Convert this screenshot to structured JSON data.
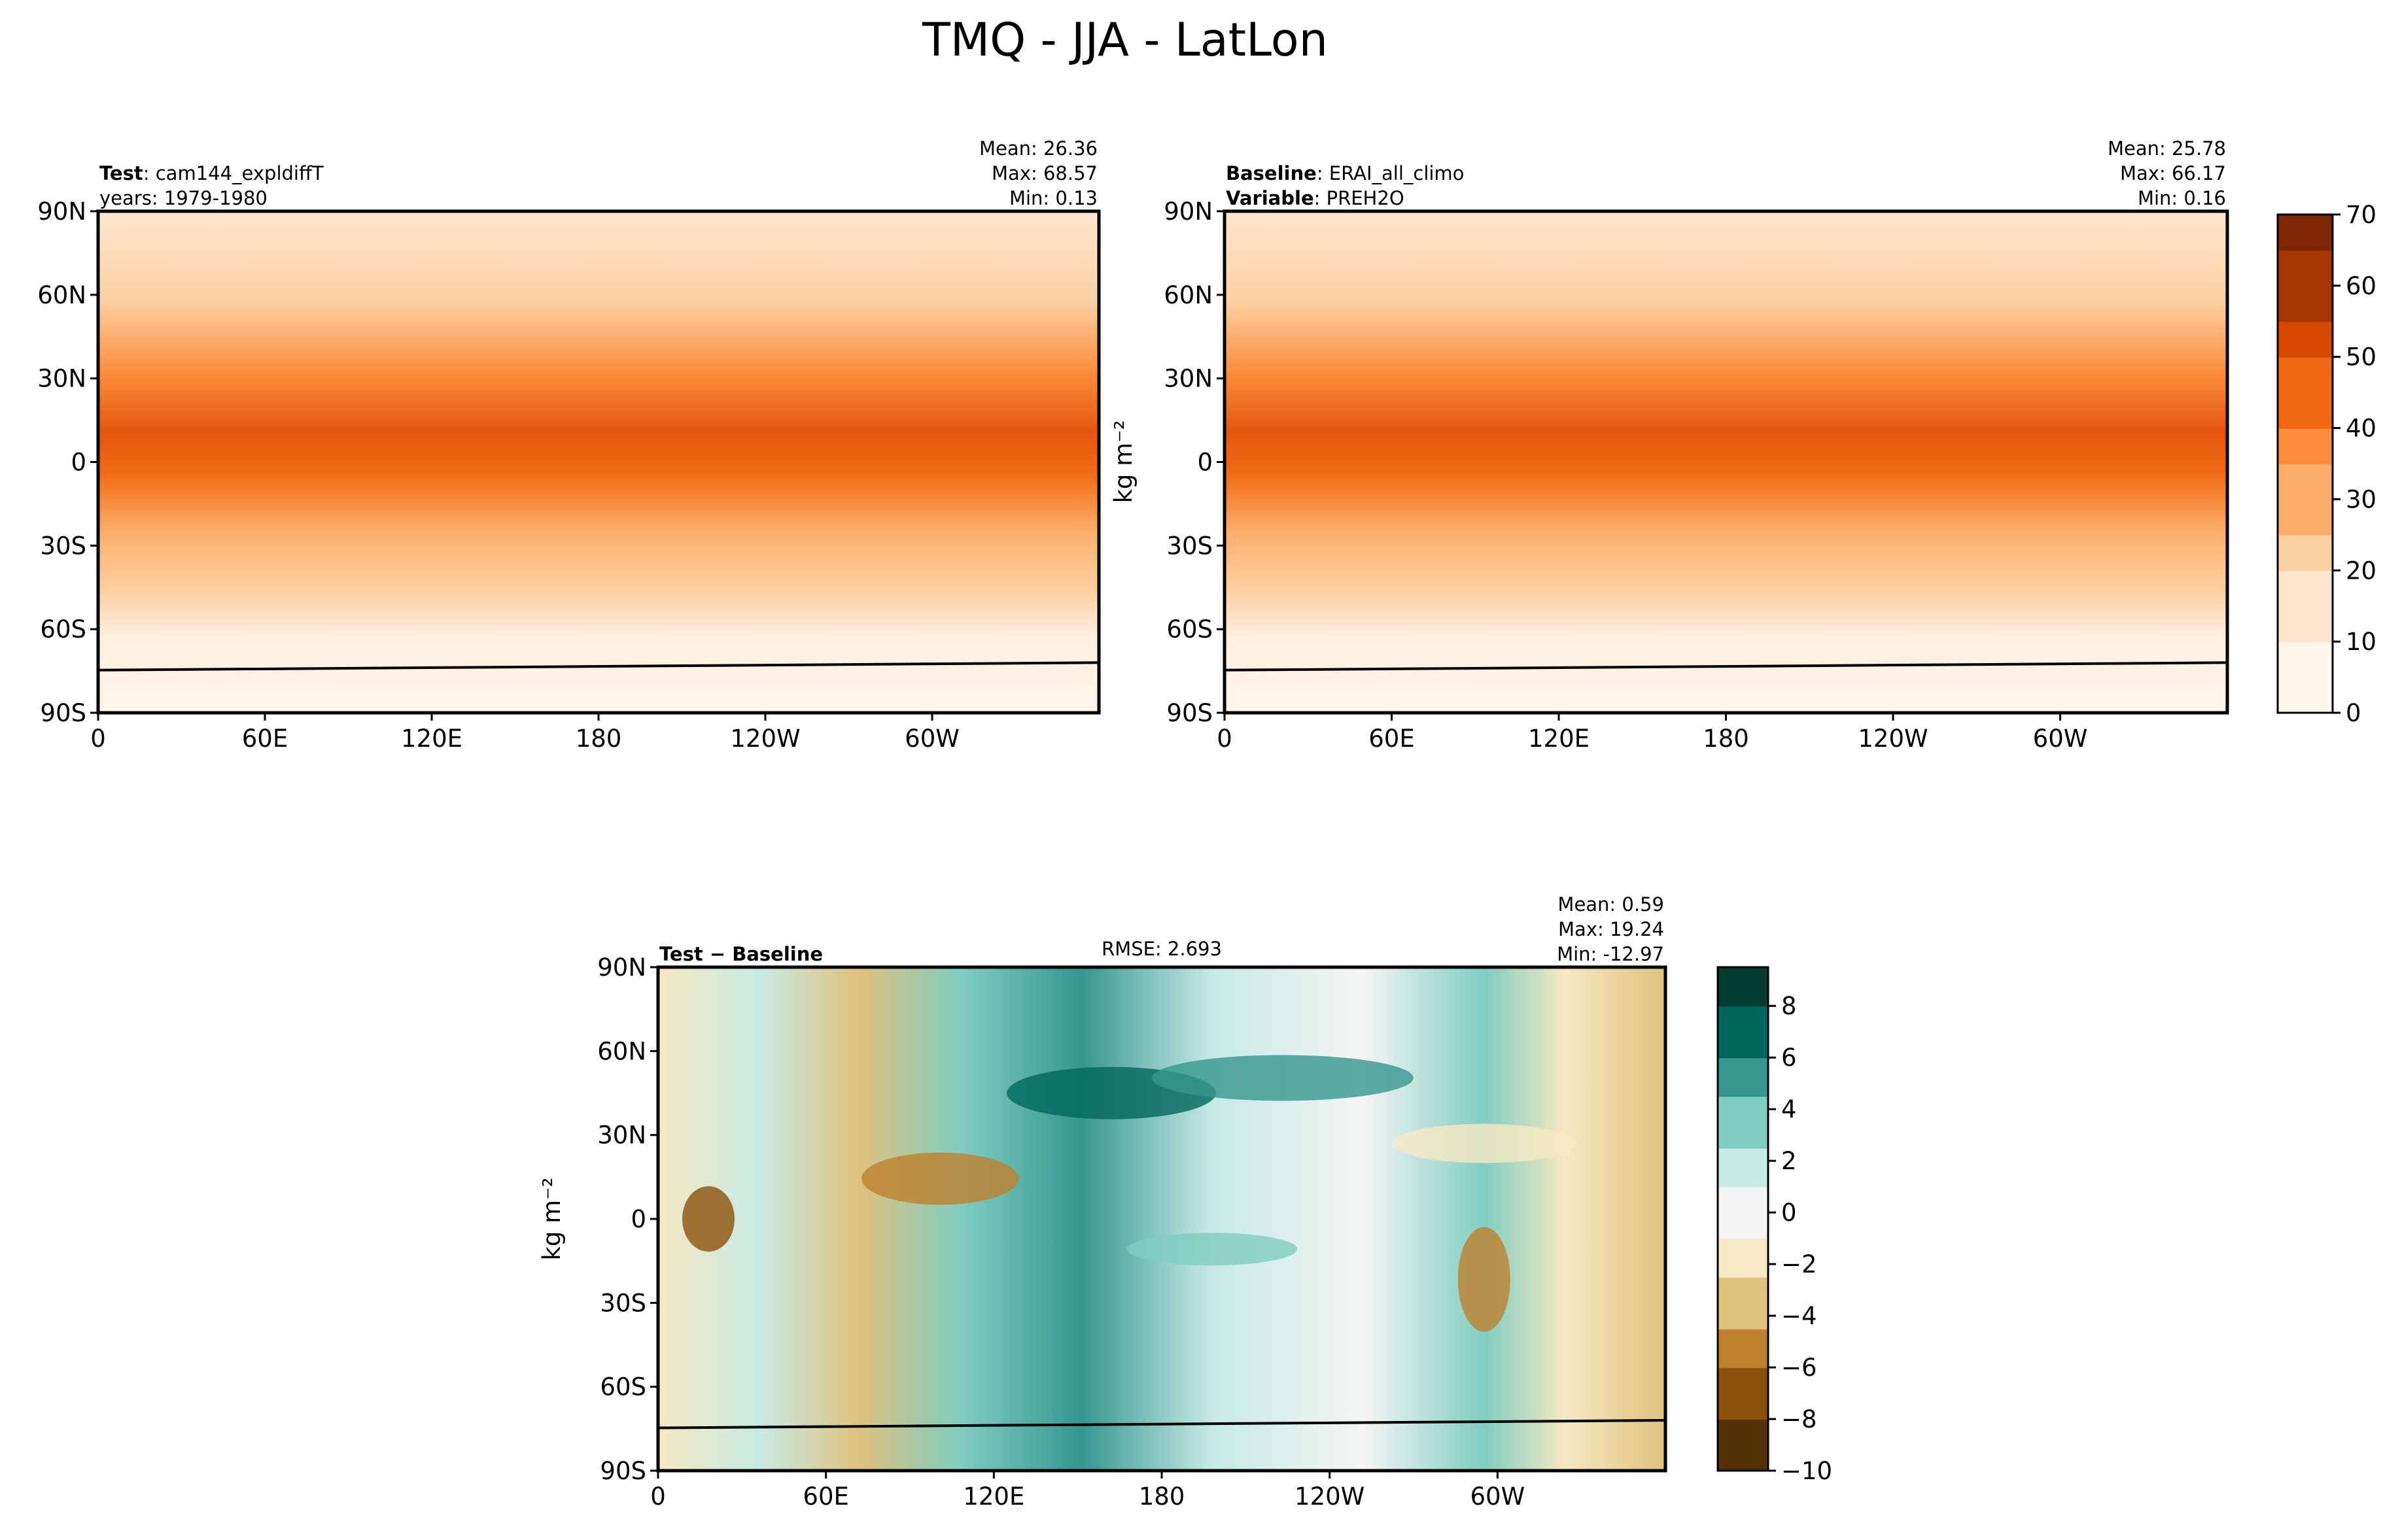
{
  "figure_title": "TMQ - JJA - LatLon",
  "chart_data": [
    {
      "type": "heatmap",
      "panel": "test",
      "header_left": [
        {
          "bold": "Test",
          "text": ": cam144_expldiffT"
        },
        {
          "bold": "",
          "text": "years: 1979-1980"
        }
      ],
      "stats": [
        "Mean: 26.36",
        "Max: 68.57",
        "Min:  0.13"
      ],
      "x_ticks": [
        "0",
        "60E",
        "120E",
        "180",
        "120W",
        "60W"
      ],
      "y_ticks": [
        "90N",
        "60N",
        "30N",
        "0",
        "30S",
        "60S",
        "90S"
      ],
      "colormap": "Oranges",
      "value_range": [
        0,
        70
      ],
      "map_type": "filled contour lat-lon with coastlines"
    },
    {
      "type": "heatmap",
      "panel": "baseline",
      "header_left": [
        {
          "bold": "Baseline",
          "text": ": ERAI_all_climo"
        },
        {
          "bold": "Variable",
          "text": ": PREH2O"
        }
      ],
      "stats": [
        "Mean: 25.78",
        "Max: 66.17",
        "Min:  0.16"
      ],
      "x_ticks": [
        "0",
        "60E",
        "120E",
        "180",
        "120W",
        "60W"
      ],
      "y_ticks": [
        "90N",
        "60N",
        "30N",
        "0",
        "30S",
        "60S",
        "90S"
      ],
      "colormap": "Oranges",
      "value_range": [
        0,
        70
      ],
      "colorbar": {
        "label": "kg m⁻²",
        "ticks": [
          "0",
          "10",
          "20",
          "30",
          "40",
          "50",
          "60",
          "70"
        ],
        "levels_step": 5,
        "range": [
          0,
          70
        ]
      }
    },
    {
      "type": "heatmap",
      "panel": "difference",
      "header_left": [
        {
          "bold": "Test − Baseline",
          "text": ""
        }
      ],
      "header_center": "RMSE: 2.693",
      "stats": [
        "Mean:  0.59",
        "Max: 19.24",
        "Min: -12.97"
      ],
      "x_ticks": [
        "0",
        "60E",
        "120E",
        "180",
        "120W",
        "60W"
      ],
      "y_ticks": [
        "90N",
        "60N",
        "30N",
        "0",
        "30S",
        "60S",
        "90S"
      ],
      "ylabel": "kg m⁻²",
      "colormap": "BrBG",
      "colorbar": {
        "ticks": [
          "−10",
          "−8",
          "−6",
          "−4",
          "−2",
          "0",
          "2",
          "4",
          "6",
          "8"
        ],
        "range": [
          -10,
          9.5
        ]
      }
    }
  ],
  "colors": {
    "oranges": [
      "#fff5eb",
      "#fee6ce",
      "#fdd0a2",
      "#fdae6b",
      "#fd8d3c",
      "#f16913",
      "#d94801",
      "#a63603",
      "#7f2704"
    ],
    "brbg": [
      "#543005",
      "#8c510a",
      "#bf812d",
      "#dfc27d",
      "#f6e8c3",
      "#f5f5f5",
      "#c7eae5",
      "#80cdc1",
      "#35978f",
      "#01665e",
      "#003c30"
    ]
  }
}
